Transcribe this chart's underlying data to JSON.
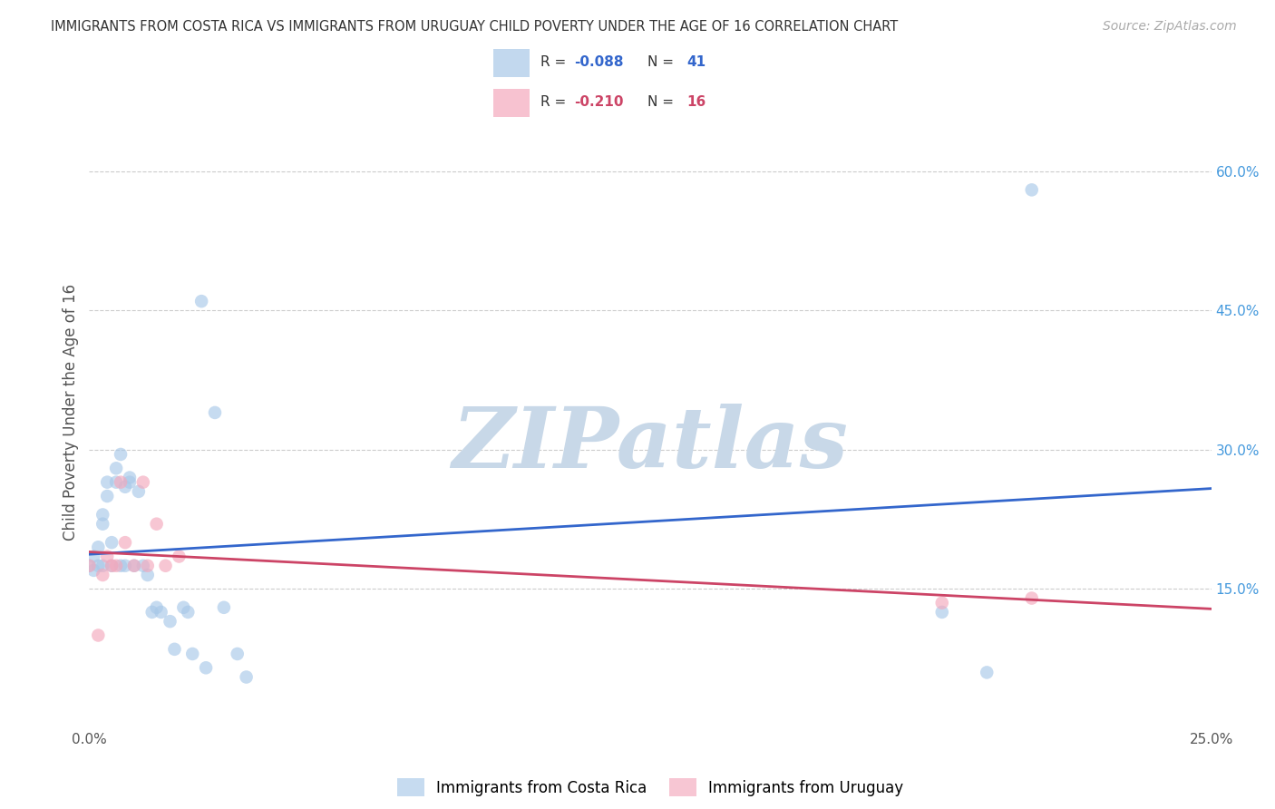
{
  "title": "IMMIGRANTS FROM COSTA RICA VS IMMIGRANTS FROM URUGUAY CHILD POVERTY UNDER THE AGE OF 16 CORRELATION CHART",
  "source": "Source: ZipAtlas.com",
  "ylabel": "Child Poverty Under the Age of 16",
  "ytick_values": [
    0.15,
    0.3,
    0.45,
    0.6
  ],
  "ytick_labels": [
    "15.0%",
    "30.0%",
    "45.0%",
    "60.0%"
  ],
  "xlim": [
    0.0,
    0.25
  ],
  "ylim": [
    0.0,
    0.68
  ],
  "watermark": "ZIPatlas",
  "costa_rica_x": [
    0.0,
    0.001,
    0.001,
    0.002,
    0.002,
    0.003,
    0.003,
    0.003,
    0.004,
    0.004,
    0.005,
    0.005,
    0.006,
    0.006,
    0.007,
    0.007,
    0.008,
    0.008,
    0.009,
    0.009,
    0.01,
    0.011,
    0.012,
    0.013,
    0.014,
    0.015,
    0.016,
    0.018,
    0.019,
    0.021,
    0.022,
    0.023,
    0.025,
    0.026,
    0.028,
    0.03,
    0.033,
    0.035,
    0.19,
    0.2,
    0.21
  ],
  "costa_rica_y": [
    0.175,
    0.17,
    0.185,
    0.175,
    0.195,
    0.22,
    0.23,
    0.175,
    0.25,
    0.265,
    0.175,
    0.2,
    0.265,
    0.28,
    0.175,
    0.295,
    0.26,
    0.175,
    0.27,
    0.265,
    0.175,
    0.255,
    0.175,
    0.165,
    0.125,
    0.13,
    0.125,
    0.115,
    0.085,
    0.13,
    0.125,
    0.08,
    0.46,
    0.065,
    0.34,
    0.13,
    0.08,
    0.055,
    0.125,
    0.06,
    0.58
  ],
  "uruguay_x": [
    0.0,
    0.002,
    0.003,
    0.004,
    0.005,
    0.006,
    0.007,
    0.008,
    0.01,
    0.012,
    0.013,
    0.015,
    0.017,
    0.02,
    0.19,
    0.21
  ],
  "uruguay_y": [
    0.175,
    0.1,
    0.165,
    0.185,
    0.175,
    0.175,
    0.265,
    0.2,
    0.175,
    0.265,
    0.175,
    0.22,
    0.175,
    0.185,
    0.135,
    0.14
  ],
  "cr_r": -0.088,
  "cr_n": 41,
  "uru_r": -0.21,
  "uru_n": 16,
  "blue_color": "#a8c8e8",
  "pink_color": "#f4a8bc",
  "blue_line_color": "#3366cc",
  "pink_line_color": "#cc4466",
  "marker_size": 110,
  "axis_label_color": "#4499dd",
  "watermark_color": "#c8d8e8",
  "title_color": "#333333",
  "source_color": "#aaaaaa",
  "grid_color": "#cccccc"
}
